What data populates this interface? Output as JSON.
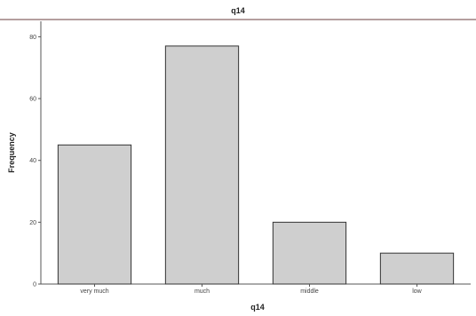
{
  "chart_data": {
    "type": "bar",
    "title": "q14",
    "xlabel": "q14",
    "ylabel": "Frequency",
    "categories": [
      "very much",
      "much",
      "middle",
      "low"
    ],
    "values": [
      45,
      77,
      20,
      10
    ],
    "ylim": [
      0,
      85
    ],
    "yticks": [
      "0",
      "20",
      "40",
      "60",
      "80"
    ],
    "grid": false,
    "colors": {
      "bar_fill": "#cfcfcf",
      "bar_stroke": "#333333",
      "axis": "#555555",
      "frame": "#6b3f3f"
    }
  }
}
